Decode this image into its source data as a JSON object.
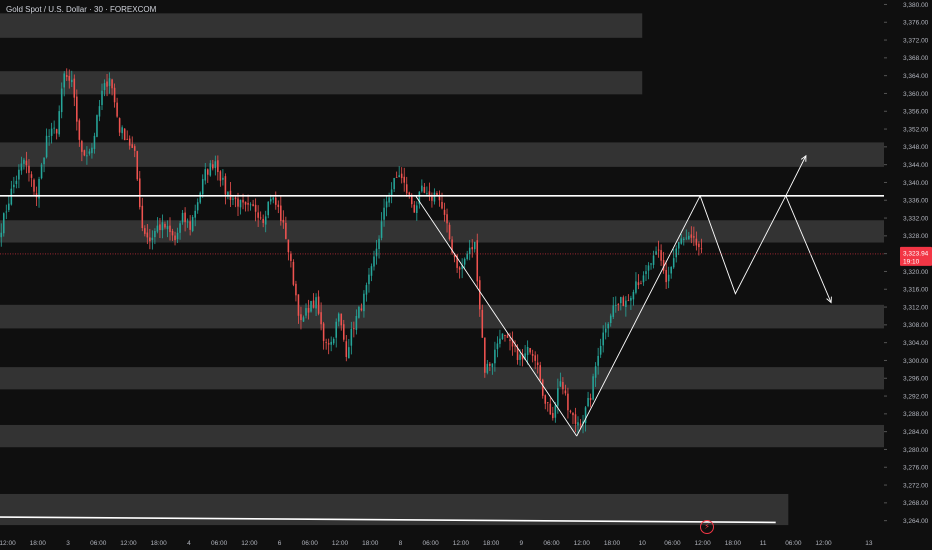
{
  "header": {
    "title": "Gold Spot / U.S. Dollar · 30 · FOREXCOM"
  },
  "colors": {
    "background": "#0f0f0f",
    "zone": "#3a3a3a",
    "up": "#26a69a",
    "down": "#ef5350",
    "line": "#ffffff",
    "price_line": "#f23645",
    "axis_text": "#b2b5be"
  },
  "icons": {
    "alert": "lightning-icon"
  },
  "chart_data": {
    "type": "candlestick",
    "title": "Gold Spot / U.S. Dollar · 30 · FOREXCOM",
    "ylim": [
      3261,
      3381
    ],
    "y_ticks": [
      "3,264.00",
      "3,268.00",
      "3,272.00",
      "3,276.00",
      "3,280.00",
      "3,284.00",
      "3,288.00",
      "3,292.00",
      "3,296.00",
      "3,300.00",
      "3,304.00",
      "3,308.00",
      "3,312.00",
      "3,316.00",
      "3,320.00",
      "3,324.00",
      "3,328.00",
      "3,332.00",
      "3,336.00",
      "3,340.00",
      "3,344.00",
      "3,348.00",
      "3,352.00",
      "3,356.00",
      "3,360.00",
      "3,364.00",
      "3,368.00",
      "3,372.00",
      "3,376.00",
      "3,380.00"
    ],
    "x_ticks": [
      {
        "label": "12:00",
        "t": 3
      },
      {
        "label": "18:00",
        "t": 15
      },
      {
        "label": "3",
        "t": 27
      },
      {
        "label": "06:00",
        "t": 39
      },
      {
        "label": "12:00",
        "t": 51
      },
      {
        "label": "18:00",
        "t": 63
      },
      {
        "label": "4",
        "t": 75
      },
      {
        "label": "06:00",
        "t": 87
      },
      {
        "label": "12:00",
        "t": 99
      },
      {
        "label": "6",
        "t": 111
      },
      {
        "label": "06:00",
        "t": 123
      },
      {
        "label": "12:00",
        "t": 135
      },
      {
        "label": "18:00",
        "t": 147
      },
      {
        "label": "8",
        "t": 159
      },
      {
        "label": "06:00",
        "t": 171
      },
      {
        "label": "12:00",
        "t": 183
      },
      {
        "label": "18:00",
        "t": 195
      },
      {
        "label": "9",
        "t": 207
      },
      {
        "label": "06:00",
        "t": 219
      },
      {
        "label": "12:00",
        "t": 231
      },
      {
        "label": "18:00",
        "t": 243
      },
      {
        "label": "10",
        "t": 255
      },
      {
        "label": "06:00",
        "t": 267
      },
      {
        "label": "12:00",
        "t": 279
      },
      {
        "label": "18:00",
        "t": 291
      },
      {
        "label": "11",
        "t": 303
      },
      {
        "label": "06:00",
        "t": 315
      },
      {
        "label": "12:00",
        "t": 327
      },
      {
        "label": "13",
        "t": 345
      }
    ],
    "last_price": {
      "value": 3323.94,
      "label": "3,323.94",
      "countdown": "19:10"
    },
    "keypoints": [
      [
        0,
        3330
      ],
      [
        4,
        3338
      ],
      [
        9,
        3345
      ],
      [
        14,
        3337
      ],
      [
        18,
        3350
      ],
      [
        22,
        3352
      ],
      [
        25,
        3364
      ],
      [
        28,
        3362
      ],
      [
        32,
        3346
      ],
      [
        36,
        3348
      ],
      [
        40,
        3360
      ],
      [
        43,
        3364
      ],
      [
        47,
        3352
      ],
      [
        50,
        3350
      ],
      [
        53,
        3346
      ],
      [
        56,
        3330
      ],
      [
        59,
        3327
      ],
      [
        62,
        3330
      ],
      [
        65,
        3330
      ],
      [
        69,
        3327
      ],
      [
        72,
        3332
      ],
      [
        75,
        3330
      ],
      [
        78,
        3336
      ],
      [
        81,
        3342
      ],
      [
        85,
        3345
      ],
      [
        89,
        3338
      ],
      [
        93,
        3336
      ],
      [
        97,
        3334
      ],
      [
        101,
        3334
      ],
      [
        104,
        3332
      ],
      [
        107,
        3337
      ],
      [
        110,
        3334
      ],
      [
        113,
        3328
      ],
      [
        116,
        3318
      ],
      [
        119,
        3308
      ],
      [
        122,
        3312
      ],
      [
        125,
        3313
      ],
      [
        128,
        3305
      ],
      [
        131,
        3304
      ],
      [
        134,
        3310
      ],
      [
        137,
        3302
      ],
      [
        140,
        3308
      ],
      [
        144,
        3314
      ],
      [
        147,
        3320
      ],
      [
        150,
        3328
      ],
      [
        153,
        3336
      ],
      [
        156,
        3340
      ],
      [
        158,
        3342
      ],
      [
        161,
        3338
      ],
      [
        164,
        3334
      ],
      [
        167,
        3338
      ],
      [
        170,
        3336
      ],
      [
        173,
        3338
      ],
      [
        176,
        3332
      ],
      [
        179,
        3325
      ],
      [
        182,
        3320
      ],
      [
        185,
        3324
      ],
      [
        188,
        3326
      ],
      [
        190,
        3312
      ],
      [
        192,
        3298
      ],
      [
        195,
        3300
      ],
      [
        198,
        3306
      ],
      [
        201,
        3304
      ],
      [
        204,
        3302
      ],
      [
        207,
        3300
      ],
      [
        210,
        3303
      ],
      [
        213,
        3300
      ],
      [
        216,
        3290
      ],
      [
        219,
        3288
      ],
      [
        222,
        3296
      ],
      [
        225,
        3289
      ],
      [
        228,
        3286
      ],
      [
        231,
        3287
      ],
      [
        234,
        3292
      ],
      [
        237,
        3302
      ],
      [
        240,
        3308
      ],
      [
        243,
        3312
      ],
      [
        246,
        3313
      ],
      [
        249,
        3314
      ],
      [
        252,
        3318
      ],
      [
        255,
        3318
      ],
      [
        258,
        3322
      ],
      [
        261,
        3324
      ],
      [
        264,
        3318
      ],
      [
        266,
        3321
      ],
      [
        268,
        3325
      ],
      [
        270,
        3327
      ],
      [
        273,
        3327
      ],
      [
        276,
        3326
      ],
      [
        278,
        3325
      ]
    ],
    "zones": [
      {
        "top": 3378,
        "bottom": 3372.5,
        "t_end": 255
      },
      {
        "top": 3365,
        "bottom": 3359.8,
        "t_end": 255
      },
      {
        "top": 3349,
        "bottom": 3343.5,
        "t_end": 351
      },
      {
        "top": 3331.5,
        "bottom": 3326.5,
        "t_end": 351
      },
      {
        "top": 3312.5,
        "bottom": 3307.2,
        "t_end": 351
      },
      {
        "top": 3298.5,
        "bottom": 3293.5,
        "t_end": 351
      },
      {
        "top": 3285.5,
        "bottom": 3280.5,
        "t_end": 351
      },
      {
        "top": 3270,
        "bottom": 3263,
        "t_end": 313
      }
    ],
    "horizontal_lines": [
      {
        "value": 3337,
        "t_start": 0,
        "t_end": 351
      },
      {
        "start": [
          0,
          3264.8
        ],
        "end": [
          308,
          3263.6
        ]
      }
    ],
    "drawn_paths": [
      {
        "points": [
          [
            165,
            3337
          ],
          [
            229,
            3283
          ]
        ]
      },
      {
        "points": [
          [
            229,
            3283
          ],
          [
            278,
            3337
          ]
        ]
      },
      {
        "points": [
          [
            278,
            3337
          ],
          [
            292,
            3315
          ],
          [
            312,
            3337
          ],
          [
            320,
            3346
          ]
        ],
        "arrow": true
      },
      {
        "points": [
          [
            312,
            3337
          ],
          [
            330,
            3313
          ]
        ],
        "arrow": true
      }
    ]
  }
}
